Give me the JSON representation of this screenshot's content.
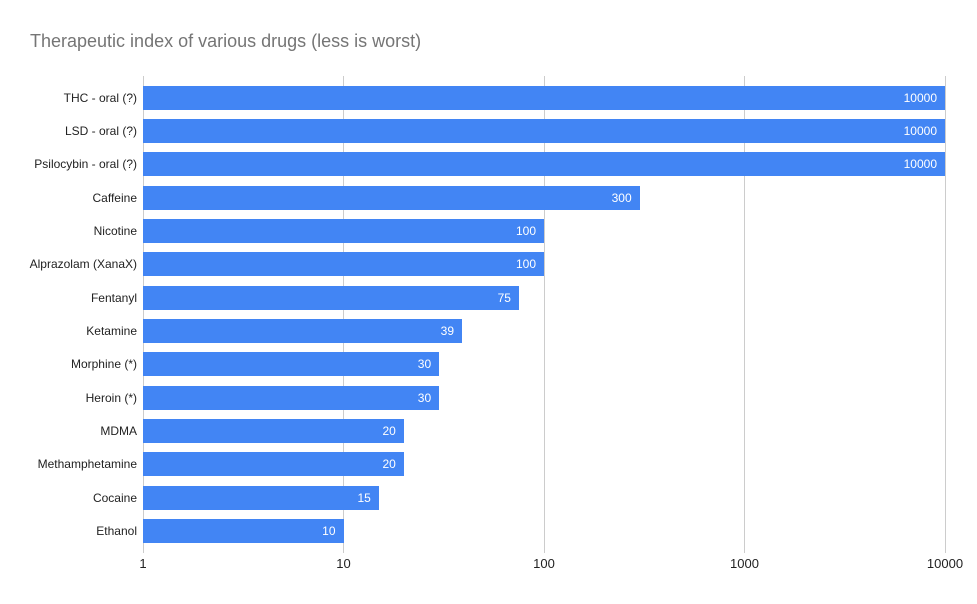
{
  "chart_data": {
    "type": "bar",
    "orientation": "horizontal",
    "title": "Therapeutic index of various drugs (less is worst)",
    "categories": [
      "THC - oral (?)",
      "LSD - oral (?)",
      "Psilocybin - oral (?)",
      "Caffeine",
      "Nicotine",
      "Alprazolam (XanaX)",
      "Fentanyl",
      "Ketamine",
      "Morphine (*)",
      "Heroin (*)",
      "MDMA",
      "Methamphetamine",
      "Cocaine",
      "Ethanol"
    ],
    "values": [
      10000,
      10000,
      10000,
      300,
      100,
      100,
      75,
      39,
      30,
      30,
      20,
      20,
      15,
      10
    ],
    "x_scale": "log",
    "xlim": [
      1,
      10000
    ],
    "x_ticks": [
      1,
      10,
      100,
      1000,
      10000
    ],
    "grid": true,
    "legend_position": "none",
    "value_labels_inside_bars": true,
    "colors": {
      "bar": "#4285f4",
      "value_label": "#ffffff",
      "title": "#757575",
      "gridline": "#cccccc",
      "axis_label": "#222222",
      "background": "#ffffff"
    }
  }
}
